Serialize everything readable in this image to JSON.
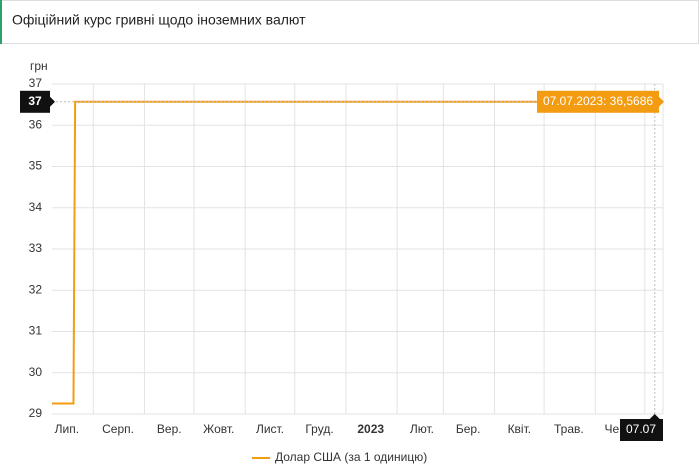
{
  "title": "Офіційний курс гривні щодо іноземних валют",
  "chart_data": {
    "type": "line",
    "ylabel": "грн",
    "x": [
      "2022-07-07",
      "2022-07-20",
      "2022-07-21",
      "2023-07-07"
    ],
    "series": [
      {
        "name": "Долар США (за 1 одиницю)",
        "color": "#f39c12",
        "values": [
          29.2549,
          29.2549,
          36.5686,
          36.5686
        ]
      }
    ],
    "xlim": [
      "2022-07-07",
      "2023-07-12"
    ],
    "xticks": [
      {
        "value": "2022-07-01",
        "label": "Лип."
      },
      {
        "value": "2022-08-01",
        "label": "Серп."
      },
      {
        "value": "2022-09-01",
        "label": "Вер."
      },
      {
        "value": "2022-10-01",
        "label": "Жовт."
      },
      {
        "value": "2022-11-01",
        "label": "Лист."
      },
      {
        "value": "2022-12-01",
        "label": "Груд."
      },
      {
        "value": "2023-01-01",
        "label": "2023"
      },
      {
        "value": "2023-02-01",
        "label": "Лют."
      },
      {
        "value": "2023-03-01",
        "label": "Бер."
      },
      {
        "value": "2023-04-01",
        "label": "Квіт."
      },
      {
        "value": "2023-05-01",
        "label": "Трав."
      },
      {
        "value": "2023-06-01",
        "label": "Черв."
      },
      {
        "value": "2023-07-01",
        "label": null
      }
    ],
    "ylim": [
      29,
      37
    ],
    "yticks": [
      29,
      30,
      31,
      32,
      33,
      34,
      35,
      36,
      37
    ],
    "grid": true,
    "crosshair": {
      "x": "2023-07-07",
      "y": 36.5686,
      "x_label": "07.07",
      "y_label": "37",
      "tooltip": "07.07.2023: 36,5686"
    }
  }
}
